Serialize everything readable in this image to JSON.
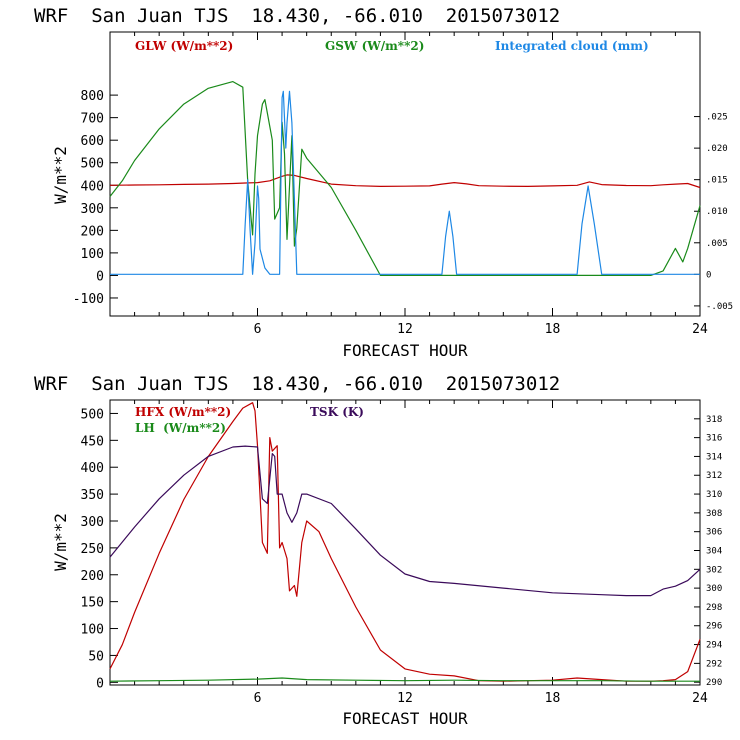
{
  "colors": {
    "red": "#c00000",
    "green": "#1a8a1a",
    "blue": "#1e88e5",
    "purple": "#3a0a5a"
  },
  "chart_data": [
    {
      "type": "line",
      "title": "WRF  San Juan TJS  18.430, -66.010  2015073012",
      "xlabel": "FORECAST HOUR",
      "ylabel": "W/m**2",
      "xlim": [
        0,
        24
      ],
      "ylim": [
        -180,
        1080
      ],
      "y2lim": [
        -0.0066,
        0.0384
      ],
      "x_ticks": [
        "6",
        "12",
        "18",
        "24"
      ],
      "x_tick_values": [
        6,
        12,
        18,
        24
      ],
      "y_ticks": [
        "-100",
        "0",
        "100",
        "200",
        "300",
        "400",
        "500",
        "600",
        "700",
        "800"
      ],
      "y_tick_values": [
        -100,
        0,
        100,
        200,
        300,
        400,
        500,
        600,
        700,
        800
      ],
      "y2_ticks": [
        "-.005",
        "0",
        ".005",
        ".010",
        ".015",
        ".020",
        ".025"
      ],
      "y2_tick_values": [
        -0.005,
        0,
        0.005,
        0.01,
        0.015,
        0.02,
        0.025
      ],
      "series": [
        {
          "name": "GLW (W/m**2)",
          "color": "red",
          "axis": "left",
          "x": [
            0,
            1,
            2,
            3,
            4,
            5,
            5.5,
            6,
            6.5,
            7,
            7.2,
            7.5,
            8,
            9,
            10,
            11,
            12,
            13,
            13.5,
            14,
            14.5,
            15,
            16,
            17,
            18,
            19,
            19.5,
            20,
            21,
            22,
            22.5,
            23,
            23.5,
            24
          ],
          "y": [
            400,
            401,
            402,
            404,
            405,
            408,
            410,
            412,
            420,
            440,
            446,
            444,
            430,
            405,
            398,
            395,
            396,
            397,
            405,
            412,
            406,
            398,
            396,
            395,
            397,
            400,
            415,
            403,
            399,
            398,
            402,
            405,
            408,
            390
          ]
        },
        {
          "name": "GSW (W/m**2)",
          "color": "green",
          "axis": "left",
          "x": [
            0,
            0.5,
            1,
            2,
            3,
            4,
            5,
            5.4,
            5.6,
            5.8,
            5.9,
            6,
            6.2,
            6.3,
            6.6,
            6.7,
            6.9,
            7,
            7.1,
            7.2,
            7.4,
            7.5,
            7.6,
            7.8,
            8,
            9,
            10,
            11,
            12,
            22,
            22.5,
            23,
            23.3,
            23.5,
            24
          ],
          "y": [
            350,
            420,
            510,
            650,
            760,
            830,
            860,
            835,
            420,
            180,
            450,
            620,
            760,
            780,
            600,
            250,
            300,
            680,
            540,
            160,
            620,
            130,
            210,
            560,
            520,
            390,
            200,
            0,
            0,
            0,
            20,
            120,
            60,
            120,
            310
          ]
        },
        {
          "name": "Integrated cloud (mm)",
          "color": "blue",
          "axis": "right",
          "x": [
            0,
            5.4,
            5.5,
            5.6,
            5.7,
            5.8,
            5.9,
            6,
            6.05,
            6.1,
            6.3,
            6.5,
            6.9,
            7,
            7.05,
            7.15,
            7.2,
            7.3,
            7.4,
            7.5,
            7.6,
            13.5,
            13.65,
            13.8,
            13.95,
            14.1,
            19.0,
            19.2,
            19.45,
            19.7,
            20.0,
            24
          ],
          "y": [
            0,
            0,
            0.008,
            0.015,
            0.007,
            0,
            0.005,
            0.014,
            0.012,
            0.004,
            0.001,
            0,
            0,
            0.028,
            0.029,
            0.02,
            0.024,
            0.029,
            0.024,
            0.012,
            0,
            0,
            0.006,
            0.01,
            0.006,
            0,
            0,
            0.008,
            0.014,
            0.008,
            0,
            0
          ]
        }
      ],
      "legend": [
        {
          "label": "GLW (W/m**2)",
          "color": "red"
        },
        {
          "label": "GSW (W/m**2)",
          "color": "green"
        },
        {
          "label": "Integrated cloud (mm)",
          "color": "blue"
        }
      ]
    },
    {
      "type": "line",
      "title": "WRF  San Juan TJS  18.430, -66.010  2015073012",
      "xlabel": "FORECAST HOUR",
      "ylabel": "W/m**2",
      "xlim": [
        0,
        24
      ],
      "ylim": [
        -5,
        525
      ],
      "y2lim": [
        289.7,
        320
      ],
      "x_ticks": [
        "6",
        "12",
        "18",
        "24"
      ],
      "x_tick_values": [
        6,
        12,
        18,
        24
      ],
      "y_ticks": [
        "0",
        "50",
        "100",
        "150",
        "200",
        "250",
        "300",
        "350",
        "400",
        "450",
        "500"
      ],
      "y_tick_values": [
        0,
        50,
        100,
        150,
        200,
        250,
        300,
        350,
        400,
        450,
        500
      ],
      "y2_ticks": [
        "290",
        "292",
        "294",
        "296",
        "298",
        "300",
        "302",
        "304",
        "306",
        "308",
        "310",
        "312",
        "314",
        "316",
        "318"
      ],
      "y2_tick_values": [
        290,
        292,
        294,
        296,
        298,
        300,
        302,
        304,
        306,
        308,
        310,
        312,
        314,
        316,
        318
      ],
      "series": [
        {
          "name": "HFX (W/m**2)",
          "color": "red",
          "axis": "left",
          "x": [
            0,
            0.5,
            1,
            2,
            3,
            4,
            5,
            5.4,
            5.8,
            5.9,
            6,
            6.2,
            6.4,
            6.5,
            6.6,
            6.8,
            6.9,
            7,
            7.2,
            7.3,
            7.5,
            7.6,
            7.8,
            8,
            8.5,
            9,
            10,
            11,
            12,
            13,
            14,
            15,
            16,
            17,
            18,
            19,
            20,
            21,
            22,
            22.5,
            23,
            23.5,
            24
          ],
          "y": [
            25,
            70,
            130,
            240,
            340,
            420,
            485,
            510,
            520,
            505,
            440,
            260,
            240,
            455,
            430,
            440,
            250,
            260,
            230,
            170,
            180,
            160,
            260,
            300,
            280,
            230,
            140,
            60,
            25,
            15,
            12,
            3,
            2,
            3,
            4,
            8,
            5,
            2,
            2,
            3,
            5,
            20,
            80
          ]
        },
        {
          "name": "LH (W/m**2)",
          "color": "green",
          "axis": "left",
          "x": [
            0,
            2,
            4,
            6,
            7,
            8,
            10,
            12,
            14,
            16,
            18,
            20,
            22,
            24
          ],
          "y": [
            2,
            3,
            4,
            6,
            8,
            5,
            4,
            3,
            4,
            3,
            3,
            3,
            2,
            2
          ]
        },
        {
          "name": "TSK (K)",
          "color": "purple",
          "axis": "right",
          "x": [
            0,
            1,
            2,
            3,
            4,
            5,
            5.5,
            6,
            6.2,
            6.4,
            6.6,
            6.7,
            6.8,
            7,
            7.2,
            7.4,
            7.6,
            7.8,
            8,
            9,
            10,
            11,
            12,
            13,
            14,
            16,
            18,
            20,
            21,
            22,
            22.5,
            23,
            23.5,
            24
          ],
          "y": [
            303.3,
            306.5,
            309.5,
            312,
            314,
            315,
            315.1,
            315,
            309.5,
            309,
            314.3,
            314,
            310,
            310,
            308,
            307,
            308,
            310,
            310,
            309,
            306.3,
            303.5,
            301.5,
            300.7,
            300.5,
            300,
            299.5,
            299.3,
            299.2,
            299.2,
            299.9,
            300.2,
            300.8,
            302
          ]
        }
      ],
      "legend": [
        {
          "label": "HFX (W/m**2)",
          "color": "red"
        },
        {
          "label": "LH  (W/m**2)",
          "color": "green"
        },
        {
          "label": "TSK (K)",
          "color": "purple"
        }
      ]
    }
  ]
}
